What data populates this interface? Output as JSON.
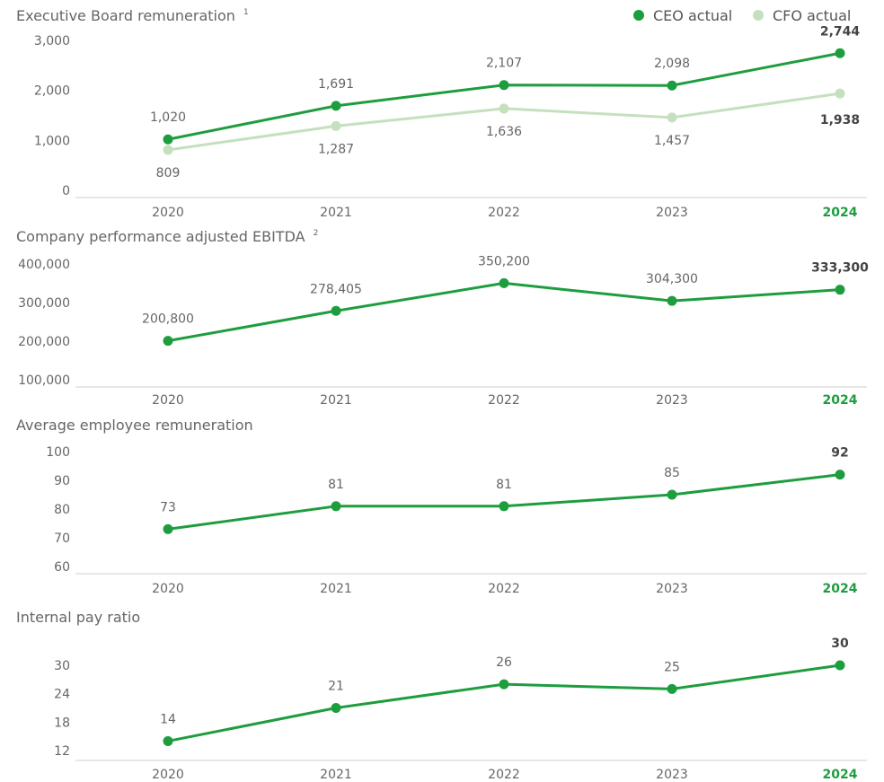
{
  "legend": [
    {
      "label": "CEO actual",
      "color": "#1e9d3f"
    },
    {
      "label": "CFO actual",
      "color": "#c5e0bf"
    }
  ],
  "highlight_color": "#1e9d3f",
  "chart_data": [
    {
      "type": "line",
      "title": "Executive Board remuneration",
      "title_footnote": "1",
      "categories": [
        "2020",
        "2021",
        "2022",
        "2023",
        "2024"
      ],
      "yticks": [
        "3,000",
        "2,000",
        "1,000",
        "0"
      ],
      "ylim": [
        0,
        3000
      ],
      "series": [
        {
          "name": "CEO actual",
          "color": "#1e9d3f",
          "values": [
            1020,
            1691,
            2107,
            2098,
            2744
          ],
          "labels": [
            "1,020",
            "1,691",
            "2,107",
            "2,098",
            "2,744"
          ]
        },
        {
          "name": "CFO actual",
          "color": "#c5e0bf",
          "values": [
            809,
            1287,
            1636,
            1457,
            1938
          ],
          "labels": [
            "809",
            "1,287",
            "1,636",
            "1,457",
            "1,938"
          ]
        }
      ]
    },
    {
      "type": "line",
      "title": "Company performance adjusted EBITDA",
      "title_footnote": "2",
      "categories": [
        "2020",
        "2021",
        "2022",
        "2023",
        "2024"
      ],
      "yticks": [
        "400,000",
        "300,000",
        "200,000",
        "100,000"
      ],
      "ylim": [
        100000,
        400000
      ],
      "series": [
        {
          "color": "#1e9d3f",
          "values": [
            200800,
            278405,
            350200,
            304300,
            333300
          ],
          "labels": [
            "200,800",
            "278,405",
            "350,200",
            "304,300",
            "333,300"
          ]
        }
      ]
    },
    {
      "type": "line",
      "title": "Average employee remuneration",
      "title_footnote": "",
      "categories": [
        "2020",
        "2021",
        "2022",
        "2023",
        "2024"
      ],
      "yticks": [
        "100",
        "90",
        "80",
        "70",
        "60"
      ],
      "ylim": [
        60,
        100
      ],
      "series": [
        {
          "color": "#1e9d3f",
          "values": [
            73,
            81,
            81,
            85,
            92
          ],
          "labels": [
            "73",
            "81",
            "81",
            "85",
            "92"
          ]
        }
      ]
    },
    {
      "type": "line",
      "title": "Internal pay ratio",
      "title_footnote": "",
      "categories": [
        "2020",
        "2021",
        "2022",
        "2023",
        "2024"
      ],
      "yticks": [
        "30",
        "24",
        "18",
        "12"
      ],
      "ylim": [
        12,
        30
      ],
      "series": [
        {
          "color": "#1e9d3f",
          "values": [
            14,
            21,
            26,
            25,
            30
          ],
          "labels": [
            "14",
            "21",
            "26",
            "25",
            "30"
          ]
        }
      ]
    }
  ]
}
